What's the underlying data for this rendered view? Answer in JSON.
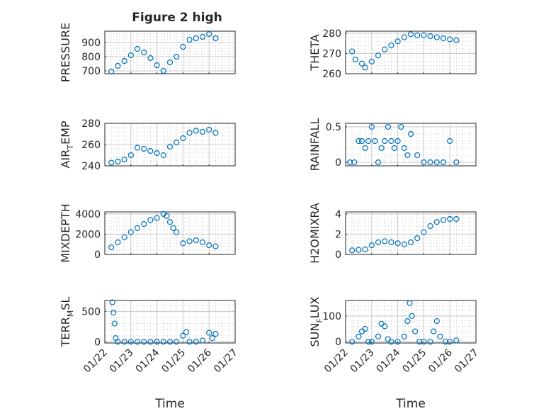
{
  "figure": {
    "title": "Figure 2 high",
    "background": "#ffffff",
    "marker_color": "#0072bd"
  },
  "chart_data": [
    {
      "type": "scatter",
      "ylabel": "PRESSURE",
      "ylabel_sub": "",
      "ylabel_after": "",
      "ylim": [
        680,
        980
      ],
      "yticks": [
        700,
        800,
        900
      ],
      "grid": "on",
      "x": [
        "01/22 06:00",
        "01/22 12:00",
        "01/22 18:00",
        "01/23 00:00",
        "01/23 06:00",
        "01/23 12:00",
        "01/23 18:00",
        "01/24 00:00",
        "01/24 06:00",
        "01/24 12:00",
        "01/24 18:00",
        "01/25 00:00",
        "01/25 06:00",
        "01/25 12:00",
        "01/25 18:00",
        "01/26 00:00",
        "01/26 06:00"
      ],
      "y": [
        695,
        735,
        770,
        810,
        855,
        830,
        790,
        740,
        700,
        760,
        800,
        870,
        920,
        930,
        940,
        960,
        930
      ]
    },
    {
      "type": "scatter",
      "ylabel": "THETA",
      "ylabel_sub": "",
      "ylabel_after": "",
      "ylim": [
        260,
        281
      ],
      "yticks": [
        260,
        270,
        280
      ],
      "grid": "on",
      "x": [
        "01/22 06:00",
        "01/22 09:00",
        "01/22 15:00",
        "01/22 18:00",
        "01/23 00:00",
        "01/23 06:00",
        "01/23 12:00",
        "01/23 18:00",
        "01/24 00:00",
        "01/24 06:00",
        "01/24 12:00",
        "01/24 18:00",
        "01/25 00:00",
        "01/25 06:00",
        "01/25 12:00",
        "01/25 18:00",
        "01/26 00:00",
        "01/26 06:00"
      ],
      "y": [
        271,
        267,
        265,
        263,
        266,
        269,
        272,
        274,
        276,
        278,
        279.5,
        279,
        279,
        278.5,
        278,
        277.5,
        277,
        276.5
      ]
    },
    {
      "type": "scatter",
      "ylabel": "AIR",
      "ylabel_sub": "T",
      "ylabel_after": "EMP",
      "ylim": [
        240,
        280
      ],
      "yticks": [
        240,
        260,
        280
      ],
      "grid": "on",
      "x": [
        "01/22 06:00",
        "01/22 12:00",
        "01/22 18:00",
        "01/23 00:00",
        "01/23 06:00",
        "01/23 12:00",
        "01/23 18:00",
        "01/24 00:00",
        "01/24 06:00",
        "01/24 12:00",
        "01/24 18:00",
        "01/25 00:00",
        "01/25 06:00",
        "01/25 12:00",
        "01/25 18:00",
        "01/26 00:00",
        "01/26 06:00"
      ],
      "y": [
        243,
        244,
        246,
        250,
        257,
        256,
        254,
        252,
        250,
        258,
        262,
        266,
        271,
        273,
        272,
        274,
        271
      ]
    },
    {
      "type": "scatter",
      "ylabel": "RAINFALL",
      "ylabel_sub": "",
      "ylabel_after": "",
      "ylim": [
        -0.05,
        0.55
      ],
      "yticks": [
        0,
        0.5
      ],
      "grid": "on",
      "x": [
        "01/22 04:00",
        "01/22 08:00",
        "01/22 12:00",
        "01/22 15:00",
        "01/22 18:00",
        "01/22 21:00",
        "01/23 00:00",
        "01/23 03:00",
        "01/23 06:00",
        "01/23 09:00",
        "01/23 12:00",
        "01/23 15:00",
        "01/23 18:00",
        "01/23 21:00",
        "01/24 00:00",
        "01/24 03:00",
        "01/24 06:00",
        "01/24 09:00",
        "01/24 12:00",
        "01/24 18:00",
        "01/25 00:00",
        "01/25 06:00",
        "01/25 12:00",
        "01/25 18:00",
        "01/26 00:00",
        "01/26 06:00"
      ],
      "y": [
        0,
        0,
        0.3,
        0.3,
        0.2,
        0.3,
        0.5,
        0.3,
        0,
        0.2,
        0.3,
        0.5,
        0.3,
        0.2,
        0.3,
        0.5,
        0.2,
        0.1,
        0.4,
        0.1,
        0,
        0,
        0,
        0,
        0.3,
        0
      ]
    },
    {
      "type": "scatter",
      "ylabel": "MIXDEPTH",
      "ylabel_sub": "",
      "ylabel_after": "",
      "ylim": [
        0,
        4200
      ],
      "yticks": [
        0,
        2000,
        4000
      ],
      "grid": "on",
      "x": [
        "01/22 06:00",
        "01/22 12:00",
        "01/22 18:00",
        "01/23 00:00",
        "01/23 06:00",
        "01/23 12:00",
        "01/23 18:00",
        "01/24 00:00",
        "01/24 06:00",
        "01/24 09:00",
        "01/24 12:00",
        "01/24 15:00",
        "01/24 18:00",
        "01/25 00:00",
        "01/25 06:00",
        "01/25 12:00",
        "01/25 18:00",
        "01/26 00:00",
        "01/26 06:00"
      ],
      "y": [
        700,
        1200,
        1700,
        2200,
        2600,
        3000,
        3400,
        3600,
        4000,
        3800,
        3200,
        2600,
        2200,
        1100,
        1300,
        1400,
        1200,
        900,
        800
      ]
    },
    {
      "type": "scatter",
      "ylabel": "H2OMIXRA",
      "ylabel_sub": "",
      "ylabel_after": "",
      "ylim": [
        0,
        4.2
      ],
      "yticks": [
        0,
        2,
        4
      ],
      "grid": "on",
      "x": [
        "01/22 06:00",
        "01/22 12:00",
        "01/22 18:00",
        "01/23 00:00",
        "01/23 06:00",
        "01/23 12:00",
        "01/23 18:00",
        "01/24 00:00",
        "01/24 06:00",
        "01/24 12:00",
        "01/24 18:00",
        "01/25 00:00",
        "01/25 06:00",
        "01/25 12:00",
        "01/25 18:00",
        "01/26 00:00",
        "01/26 06:00"
      ],
      "y": [
        0.4,
        0.45,
        0.5,
        0.9,
        1.2,
        1.3,
        1.2,
        1.1,
        1.0,
        1.2,
        1.6,
        2.2,
        2.8,
        3.2,
        3.4,
        3.5,
        3.5
      ]
    },
    {
      "type": "scatter",
      "ylabel": "TERR",
      "ylabel_sub": "M",
      "ylabel_after": "SL",
      "ylim": [
        -20,
        680
      ],
      "yticks": [
        0,
        500
      ],
      "grid": "on",
      "x": [
        "01/22 07:00",
        "01/22 08:00",
        "01/22 09:00",
        "01/22 10:00",
        "01/22 12:00",
        "01/22 18:00",
        "01/23 00:00",
        "01/23 06:00",
        "01/23 12:00",
        "01/23 18:00",
        "01/24 00:00",
        "01/24 06:00",
        "01/24 12:00",
        "01/24 18:00",
        "01/25 00:00",
        "01/25 03:00",
        "01/25 06:00",
        "01/25 12:00",
        "01/25 18:00",
        "01/26 00:00",
        "01/26 03:00",
        "01/26 06:00"
      ],
      "y": [
        650,
        480,
        300,
        60,
        0,
        0,
        0,
        0,
        0,
        0,
        0,
        0,
        0,
        0,
        100,
        160,
        0,
        0,
        20,
        150,
        60,
        130
      ]
    },
    {
      "type": "scatter",
      "ylabel": "SUN",
      "ylabel_sub": "F",
      "ylabel_after": "LUX",
      "ylim": [
        -5,
        160
      ],
      "yticks": [
        0,
        100
      ],
      "grid": "on",
      "x": [
        "01/22 06:00",
        "01/22 12:00",
        "01/22 15:00",
        "01/22 18:00",
        "01/22 21:00",
        "01/23 00:00",
        "01/23 06:00",
        "01/23 09:00",
        "01/23 12:00",
        "01/23 15:00",
        "01/23 18:00",
        "01/24 00:00",
        "01/24 06:00",
        "01/24 09:00",
        "01/24 11:00",
        "01/24 13:00",
        "01/24 16:00",
        "01/24 20:00",
        "01/25 00:00",
        "01/25 06:00",
        "01/25 09:00",
        "01/25 12:00",
        "01/25 15:00",
        "01/25 20:00",
        "01/26 00:00",
        "01/26 06:00"
      ],
      "y": [
        0,
        20,
        40,
        50,
        0,
        0,
        20,
        70,
        60,
        10,
        0,
        0,
        20,
        80,
        150,
        100,
        40,
        0,
        0,
        0,
        40,
        80,
        20,
        0,
        0,
        5
      ]
    }
  ],
  "x_axis": {
    "label": "Time",
    "ticks": [
      "01/22",
      "01/23",
      "01/24",
      "01/25",
      "01/26",
      "01/27"
    ],
    "range": [
      "01/22",
      "01/27"
    ]
  }
}
